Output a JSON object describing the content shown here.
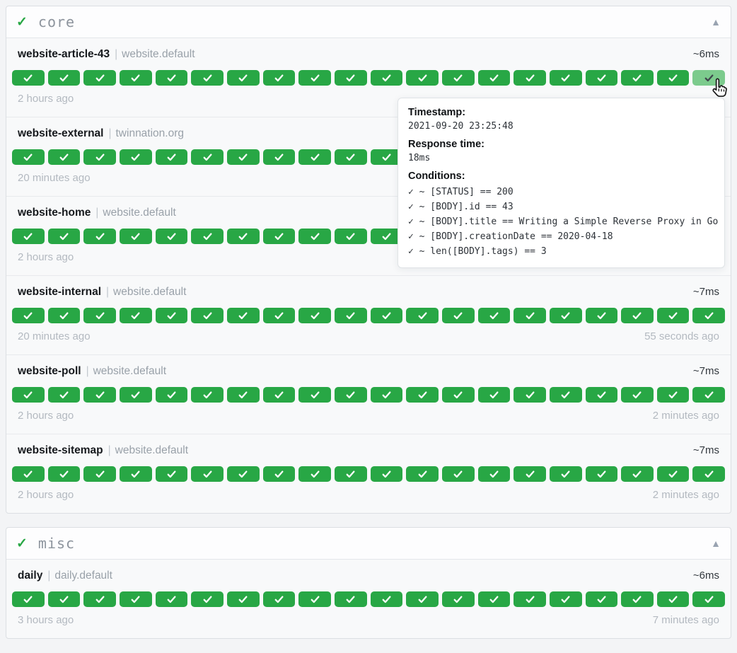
{
  "colors": {
    "success": "#28a745",
    "success_hover": "#7ccb8d",
    "page_bg": "#f3f4f6"
  },
  "icons": {
    "group_status": "✓",
    "collapse": "▲",
    "badge": "✓"
  },
  "groups": [
    {
      "title": "core",
      "services": [
        {
          "name": "website-article-43",
          "separator": "|",
          "group_label": "website.default",
          "response_time": "~6ms",
          "last_check_left": "2 hours ago",
          "last_check_right": "",
          "badge_count": 20,
          "hovered_last_badge": true
        },
        {
          "name": "website-external",
          "separator": "|",
          "group_label": "twinnation.org",
          "response_time": "",
          "last_check_left": "20 minutes ago",
          "last_check_right": "",
          "badge_count": 20,
          "hovered_last_badge": false
        },
        {
          "name": "website-home",
          "separator": "|",
          "group_label": "website.default",
          "response_time": "",
          "last_check_left": "2 hours ago",
          "last_check_right": "",
          "badge_count": 20,
          "hovered_last_badge": false
        },
        {
          "name": "website-internal",
          "separator": "|",
          "group_label": "website.default",
          "response_time": "~7ms",
          "last_check_left": "20 minutes ago",
          "last_check_right": "55 seconds ago",
          "badge_count": 20,
          "hovered_last_badge": false
        },
        {
          "name": "website-poll",
          "separator": "|",
          "group_label": "website.default",
          "response_time": "~7ms",
          "last_check_left": "2 hours ago",
          "last_check_right": "2 minutes ago",
          "badge_count": 20,
          "hovered_last_badge": false
        },
        {
          "name": "website-sitemap",
          "separator": "|",
          "group_label": "website.default",
          "response_time": "~7ms",
          "last_check_left": "2 hours ago",
          "last_check_right": "2 minutes ago",
          "badge_count": 20,
          "hovered_last_badge": false
        }
      ]
    },
    {
      "title": "misc",
      "services": [
        {
          "name": "daily",
          "separator": "|",
          "group_label": "daily.default",
          "response_time": "~6ms",
          "last_check_left": "3 hours ago",
          "last_check_right": "7 minutes ago",
          "badge_count": 20,
          "hovered_last_badge": false
        }
      ]
    }
  ],
  "tooltip": {
    "timestamp_label": "Timestamp:",
    "timestamp": "2021-09-20 23:25:48",
    "response_time_label": "Response time:",
    "response_time": "18ms",
    "conditions_label": "Conditions:",
    "conditions": [
      "✓ ~ [STATUS] == 200",
      "✓ ~ [BODY].id == 43",
      "✓ ~ [BODY].title == Writing a Simple Reverse Proxy in Go",
      "✓ ~ [BODY].creationDate == 2020-04-18",
      "✓ ~ len([BODY].tags) == 3"
    ]
  }
}
